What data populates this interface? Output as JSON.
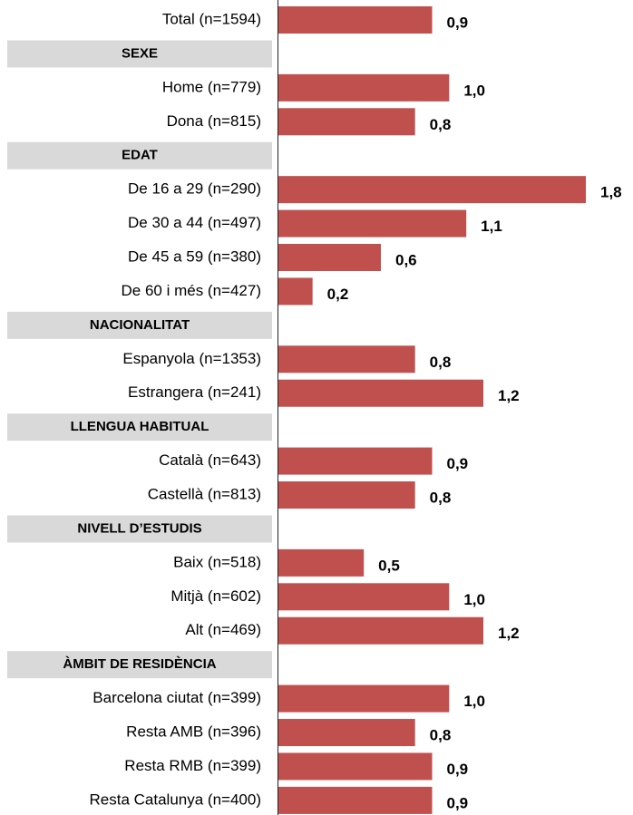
{
  "chart_data": {
    "type": "bar",
    "orientation": "horizontal",
    "color": "#c0504d",
    "categories": [
      "Total (n=1594)",
      "SEXE",
      "Home (n=779)",
      "Dona (n=815)",
      "EDAT",
      "De 16 a 29 (n=290)",
      "De 30 a 44 (n=497)",
      "De 45 a 59 (n=380)",
      "De 60 i més (n=427)",
      "NACIONALITAT",
      "Espanyola (n=1353)",
      "Estrangera (n=241)",
      "LLENGUA HABITUAL",
      "Català (n=643)",
      "Castellà (n=813)",
      "NIVELL D’ESTUDIS",
      "Baix (n=518)",
      "Mitjà (n=602)",
      "Alt (n=469)",
      "ÀMBIT DE RESIDÈNCIA",
      "Barcelona ciutat (n=399)",
      "Resta AMB (n=396)",
      "Resta RMB (n=399)",
      "Resta Catalunya (n=400)"
    ],
    "values": [
      0.9,
      null,
      1.0,
      0.8,
      null,
      1.8,
      1.1,
      0.6,
      0.2,
      null,
      0.8,
      1.2,
      null,
      0.9,
      0.8,
      null,
      0.5,
      1.0,
      1.2,
      null,
      1.0,
      0.8,
      0.9,
      0.9
    ],
    "value_labels": [
      "0,9",
      null,
      "1,0",
      "0,8",
      null,
      "1,8",
      "1,1",
      "0,6",
      "0,2",
      null,
      "0,8",
      "1,2",
      null,
      "0,9",
      "0,8",
      null,
      "0,5",
      "1,0",
      "1,2",
      null,
      "1,0",
      "0,8",
      "0,9",
      "0,9"
    ],
    "xlim": [
      0,
      1.8
    ]
  }
}
